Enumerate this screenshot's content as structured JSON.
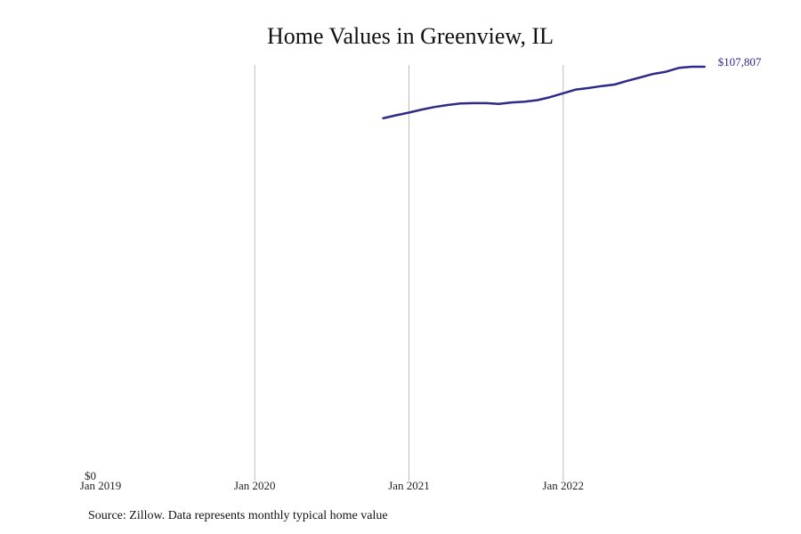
{
  "chart_data": {
    "type": "line",
    "title": "Home Values in Greenview, IL",
    "source": "Source: Zillow. Data represents monthly typical home value",
    "x_ticks": [
      "Jan 2019",
      "Jan 2020",
      "Jan 2021",
      "Jan 2022"
    ],
    "y_ticks": [
      {
        "value": 0,
        "label": "$0"
      }
    ],
    "ylim": [
      0,
      107807
    ],
    "xlim": [
      "2019-01",
      "2023-01"
    ],
    "grid": "vertical",
    "line_color": "#2e2a8a",
    "end_label": "$107,807",
    "series": [
      {
        "x": [
          "2020-11",
          "2020-12",
          "2021-01",
          "2021-02",
          "2021-03",
          "2021-04",
          "2021-05",
          "2021-06",
          "2021-07",
          "2021-08",
          "2021-09",
          "2021-10",
          "2021-11",
          "2021-12",
          "2022-01",
          "2022-02",
          "2022-03",
          "2022-04",
          "2022-05",
          "2022-06",
          "2022-07",
          "2022-08",
          "2022-09",
          "2022-10",
          "2022-11",
          "2022-12"
        ],
        "values": [
          94200,
          95000,
          95700,
          96500,
          97200,
          97700,
          98100,
          98200,
          98200,
          98000,
          98400,
          98600,
          99000,
          99800,
          100800,
          101800,
          102200,
          102700,
          103100,
          104100,
          105000,
          105900,
          106500,
          107500,
          107800,
          107807
        ]
      }
    ]
  }
}
